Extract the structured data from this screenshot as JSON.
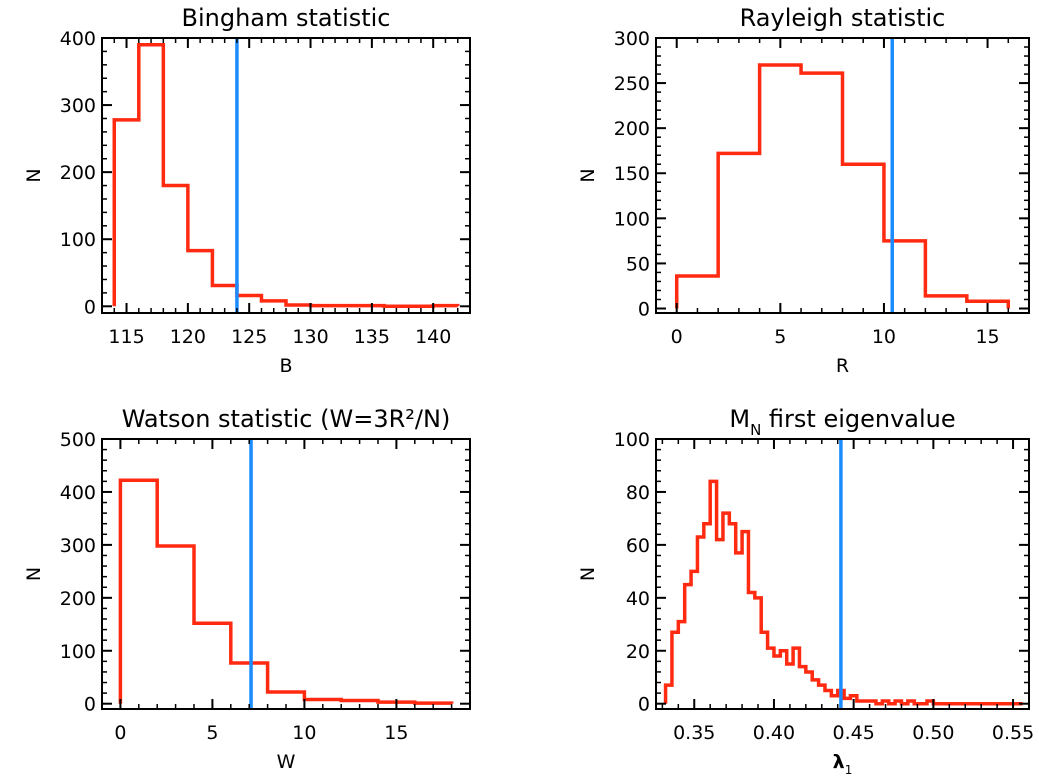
{
  "colors": {
    "histogram": "#ff2a10",
    "reference_line": "#1a8cff",
    "axes": "#000000",
    "background": "#ffffff"
  },
  "chart_data": [
    {
      "type": "histogram",
      "title": "Bingham statistic",
      "xlabel": "B",
      "ylabel": "N",
      "xlim": [
        113,
        143
      ],
      "ylim": [
        -10,
        400
      ],
      "xticks": [
        115,
        120,
        125,
        130,
        135,
        140
      ],
      "yticks": [
        0,
        100,
        200,
        300,
        400
      ],
      "bin_edges": [
        114,
        116,
        118,
        120,
        122,
        124,
        126,
        128,
        130,
        132,
        134,
        136,
        138,
        140,
        142
      ],
      "counts": [
        278,
        390,
        180,
        83,
        31,
        16,
        8,
        2,
        1,
        1,
        1,
        0,
        0,
        1
      ],
      "reference_value": 124
    },
    {
      "type": "histogram",
      "title": "Rayleigh statistic",
      "xlabel": "R",
      "ylabel": "N",
      "xlim": [
        -1,
        17
      ],
      "ylim": [
        -5,
        300
      ],
      "xticks": [
        0,
        5,
        10,
        15
      ],
      "yticks": [
        0,
        50,
        100,
        150,
        200,
        250,
        300
      ],
      "bin_edges": [
        0,
        2,
        4,
        6,
        8,
        10,
        12,
        14,
        16
      ],
      "counts": [
        36,
        172,
        270,
        261,
        160,
        75,
        14,
        8
      ],
      "reference_value": 10.4
    },
    {
      "type": "histogram",
      "title": "Watson statistic (W=3R²/N)",
      "xlabel": "W",
      "ylabel": "N",
      "xlim": [
        -1,
        19
      ],
      "ylim": [
        -10,
        500
      ],
      "xticks": [
        0,
        5,
        10,
        15
      ],
      "yticks": [
        0,
        100,
        200,
        300,
        400,
        500
      ],
      "bin_edges": [
        0,
        2,
        4,
        6,
        8,
        10,
        12,
        14,
        16,
        18
      ],
      "counts": [
        422,
        298,
        152,
        77,
        22,
        8,
        6,
        3,
        1
      ],
      "reference_value": 7.1
    },
    {
      "type": "histogram",
      "title": "M_N first eigenvalue",
      "title_parts": {
        "main": "M",
        "subscript": "N",
        "rest": " first eigenvalue"
      },
      "xlabel": "λ₁",
      "xlabel_parts": {
        "main": "λ",
        "subscript": "1"
      },
      "ylabel": "N",
      "xlim": [
        0.326,
        0.56
      ],
      "ylim": [
        -2,
        100
      ],
      "xticks": [
        0.35,
        0.4,
        0.45,
        0.5,
        0.55
      ],
      "ytick_labels": [
        "0",
        "20",
        "40",
        "60",
        "80",
        "100"
      ],
      "xtick_labels": [
        "0.35",
        "0.40",
        "0.45",
        "0.50",
        "0.55"
      ],
      "bin_edges": [
        0.332,
        0.336,
        0.34,
        0.344,
        0.348,
        0.352,
        0.356,
        0.36,
        0.364,
        0.368,
        0.372,
        0.376,
        0.38,
        0.384,
        0.388,
        0.392,
        0.396,
        0.4,
        0.404,
        0.408,
        0.412,
        0.416,
        0.42,
        0.424,
        0.428,
        0.432,
        0.436,
        0.44,
        0.444,
        0.448,
        0.452,
        0.456,
        0.46,
        0.464,
        0.468,
        0.472,
        0.476,
        0.48,
        0.484,
        0.488,
        0.492,
        0.496,
        0.5,
        0.504,
        0.508,
        0.512,
        0.516,
        0.52,
        0.524,
        0.528,
        0.532,
        0.536,
        0.54,
        0.544,
        0.548,
        0.552,
        0.556
      ],
      "counts": [
        7,
        27,
        31,
        45,
        50,
        63,
        68,
        84,
        62,
        72,
        68,
        57,
        65,
        42,
        40,
        27,
        21,
        18,
        20,
        15,
        21,
        14,
        12,
        9,
        7,
        5,
        3,
        5,
        2,
        3,
        1,
        1,
        1,
        0,
        1,
        0,
        1,
        0,
        1,
        0,
        0,
        1,
        0,
        0,
        0,
        0,
        0,
        0,
        0,
        0,
        0,
        0,
        0,
        0,
        0,
        0
      ],
      "reference_value": 0.442
    }
  ]
}
